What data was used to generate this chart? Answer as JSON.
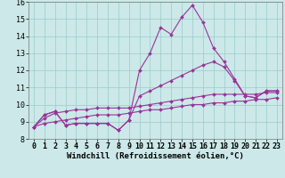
{
  "xlabel": "Windchill (Refroidissement éolien,°C)",
  "x": [
    0,
    1,
    2,
    3,
    4,
    5,
    6,
    7,
    8,
    9,
    10,
    11,
    12,
    13,
    14,
    15,
    16,
    17,
    18,
    19,
    20,
    21,
    22,
    23
  ],
  "line1": [
    8.7,
    9.4,
    9.6,
    8.8,
    8.9,
    8.9,
    8.9,
    8.9,
    8.5,
    9.1,
    12.0,
    13.0,
    14.5,
    14.1,
    15.1,
    15.8,
    14.8,
    13.3,
    12.5,
    11.5,
    10.5,
    10.4,
    10.8,
    10.8
  ],
  "line2": [
    8.7,
    9.4,
    9.6,
    8.8,
    8.9,
    8.9,
    8.9,
    8.9,
    8.5,
    9.1,
    10.5,
    10.8,
    11.1,
    11.4,
    11.7,
    12.0,
    12.3,
    12.5,
    12.2,
    11.4,
    10.5,
    10.4,
    10.8,
    10.8
  ],
  "line3": [
    8.7,
    9.2,
    9.5,
    9.6,
    9.7,
    9.7,
    9.8,
    9.8,
    9.8,
    9.8,
    9.9,
    10.0,
    10.1,
    10.2,
    10.3,
    10.4,
    10.5,
    10.6,
    10.6,
    10.6,
    10.6,
    10.6,
    10.7,
    10.7
  ],
  "line4": [
    8.7,
    8.9,
    9.0,
    9.1,
    9.2,
    9.3,
    9.4,
    9.4,
    9.4,
    9.5,
    9.6,
    9.7,
    9.7,
    9.8,
    9.9,
    10.0,
    10.0,
    10.1,
    10.1,
    10.2,
    10.2,
    10.3,
    10.3,
    10.4
  ],
  "line_color": "#993399",
  "bg_color": "#cce8e8",
  "grid_color": "#99cccc",
  "ylim": [
    8,
    16
  ],
  "yticks": [
    8,
    9,
    10,
    11,
    12,
    13,
    14,
    15,
    16
  ],
  "xticks": [
    0,
    1,
    2,
    3,
    4,
    5,
    6,
    7,
    8,
    9,
    10,
    11,
    12,
    13,
    14,
    15,
    16,
    17,
    18,
    19,
    20,
    21,
    22,
    23
  ],
  "marker": "D",
  "markersize": 2.0,
  "linewidth": 0.8,
  "xlabel_fontsize": 6.5,
  "tick_fontsize": 6.0
}
